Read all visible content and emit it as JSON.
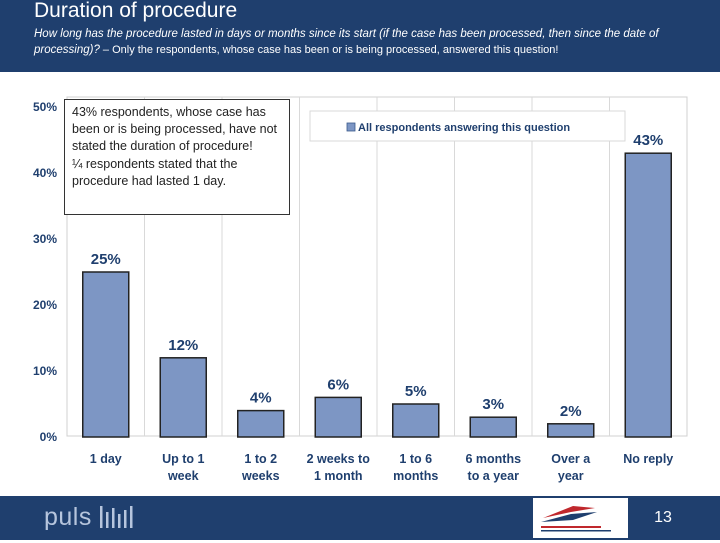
{
  "header": {
    "title": "Duration of procedure",
    "question": "How long has the procedure lasted in days or months since its start (if the case has been processed, then since the date of processing)?",
    "note": " – Only the respondents, whose case has been or is being processed, answered this question!"
  },
  "callout": {
    "line1": "43% respondents, whose case has been or is being processed, have not stated the duration of procedure!",
    "line2": "¼ respondents stated that the procedure had lasted 1 day."
  },
  "footer": {
    "brand": "puls",
    "page_number": "13"
  },
  "colors": {
    "header_bg": "#1f3f6e",
    "bar_fill": "#7d96c4",
    "label_text": "#1f3f6e"
  },
  "chart_data": {
    "type": "bar",
    "categories": [
      [
        "1 day"
      ],
      [
        "Up to 1",
        "week"
      ],
      [
        "1 to 2",
        "weeks"
      ],
      [
        "2 weeks to",
        "1 month"
      ],
      [
        "1 to 6",
        "months"
      ],
      [
        "6 months",
        "to a year"
      ],
      [
        "Over a",
        "year"
      ],
      [
        "No reply"
      ]
    ],
    "series": [
      {
        "name": "All respondents answering this question",
        "values": [
          25,
          12,
          4,
          6,
          5,
          3,
          2,
          43
        ]
      }
    ],
    "data_labels": [
      "25%",
      "12%",
      "4%",
      "6%",
      "5%",
      "3%",
      "2%",
      "43%"
    ],
    "y_ticks": [
      "0%",
      "10%",
      "20%",
      "30%",
      "40%",
      "50%"
    ],
    "ylim": [
      0,
      50
    ],
    "grid": "vertical",
    "legend": "top-right"
  }
}
